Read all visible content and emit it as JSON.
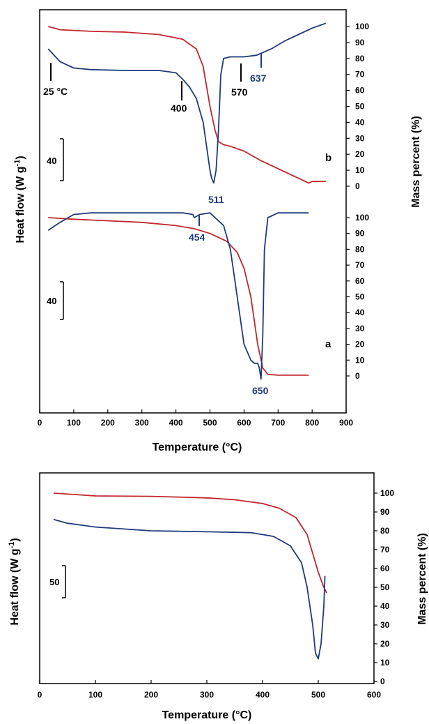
{
  "colors": {
    "dsc": "#1f3a7a",
    "tga": "#c0262c",
    "axis": "#000000"
  },
  "top_panel": {
    "xlabel": "Temperature (°C)",
    "ylabel_left": "Heat flow (W g⁻¹)",
    "ylabel_right": "Mass percent (%)",
    "xticks": [
      "0",
      "100",
      "200",
      "300",
      "400",
      "500",
      "600",
      "700",
      "800",
      "900"
    ],
    "yticks_b": [
      "100",
      "90",
      "80",
      "70",
      "60",
      "50",
      "40",
      "30",
      "20",
      "10",
      "0"
    ],
    "yticks_a": [
      "100",
      "90",
      "80",
      "70",
      "60",
      "50",
      "40",
      "30",
      "20",
      "10",
      "0"
    ],
    "label_a": "a",
    "label_b": "b",
    "scale_b": "40",
    "scale_a": "40",
    "annotations": {
      "t25": "25 °C",
      "t400": "400",
      "t511": "511",
      "t570": "570",
      "t637": "637",
      "t454": "454",
      "t650": "650"
    }
  },
  "bottom_panel": {
    "xlabel": "Temperature (°C)",
    "ylabel_left": "Heat flow (W g⁻¹)",
    "ylabel_right": "Mass percent (%)",
    "xticks": [
      "0",
      "100",
      "200",
      "300",
      "400",
      "500",
      "600"
    ],
    "yticks": [
      "100",
      "90",
      "80",
      "70",
      "60",
      "50",
      "40",
      "30",
      "20",
      "10",
      "0"
    ],
    "scale": "50"
  },
  "chart_data": [
    {
      "type": "line",
      "panel": "top",
      "curve": "b",
      "xlabel": "Temperature (°C)",
      "xlim": [
        0,
        900
      ],
      "mass_ylim": [
        0,
        100
      ],
      "series": [
        {
          "kind": "tga",
          "x": [
            25,
            60,
            150,
            250,
            350,
            420,
            460,
            480,
            500,
            515,
            525,
            540,
            560,
            600,
            650,
            700,
            750,
            790,
            800,
            820,
            840
          ],
          "y": [
            100,
            98,
            97,
            96.5,
            95,
            92,
            86,
            75,
            50,
            35,
            28,
            26,
            25,
            22,
            16,
            11,
            6,
            2,
            3,
            3,
            3
          ]
        },
        {
          "kind": "dsc",
          "x": [
            25,
            60,
            100,
            150,
            250,
            350,
            400,
            420,
            440,
            460,
            480,
            490,
            500,
            505,
            511,
            518,
            525,
            532,
            540,
            560,
            600,
            637,
            680,
            720,
            760,
            800,
            840
          ],
          "y": [
            86,
            78,
            74,
            73,
            72.5,
            72.5,
            71,
            67,
            62,
            55,
            40,
            25,
            10,
            5,
            2,
            10,
            35,
            70,
            80,
            81,
            81,
            82,
            86,
            91,
            95,
            99,
            102
          ]
        }
      ]
    },
    {
      "type": "line",
      "panel": "top",
      "curve": "a",
      "xlabel": "Temperature (°C)",
      "xlim": [
        0,
        900
      ],
      "mass_ylim": [
        0,
        100
      ],
      "series": [
        {
          "kind": "tga",
          "x": [
            25,
            100,
            200,
            300,
            400,
            454,
            500,
            550,
            580,
            600,
            620,
            640,
            655,
            670,
            700,
            750,
            790
          ],
          "y": [
            100,
            99,
            98,
            97,
            95,
            93,
            90,
            85,
            78,
            68,
            50,
            20,
            5,
            1,
            0.5,
            0.5,
            0.5
          ]
        },
        {
          "kind": "dsc",
          "x": [
            25,
            60,
            100,
            150,
            250,
            350,
            420,
            450,
            454,
            470,
            500,
            540,
            560,
            580,
            600,
            620,
            630,
            640,
            645,
            650,
            655,
            660,
            670,
            700,
            750,
            790
          ],
          "y": [
            92,
            97,
            102,
            103,
            103,
            103,
            103,
            102,
            100,
            102,
            103,
            95,
            80,
            50,
            20,
            10,
            8,
            8,
            5,
            -2,
            25,
            80,
            100,
            103,
            103,
            103
          ]
        }
      ]
    },
    {
      "type": "line",
      "panel": "bottom",
      "xlabel": "Temperature (°C)",
      "xlim": [
        0,
        600
      ],
      "mass_ylim": [
        0,
        100
      ],
      "series": [
        {
          "kind": "tga",
          "x": [
            25,
            100,
            200,
            300,
            350,
            400,
            430,
            460,
            480,
            490,
            500,
            510,
            515
          ],
          "y": [
            100,
            98.5,
            98.3,
            97.5,
            96.5,
            94.5,
            92,
            87,
            78,
            68,
            58,
            50,
            47
          ]
        },
        {
          "kind": "dsc",
          "x": [
            25,
            50,
            100,
            200,
            300,
            380,
            420,
            450,
            470,
            480,
            490,
            495,
            500,
            505,
            510,
            512
          ],
          "y": [
            86,
            84,
            82,
            80,
            79.5,
            79,
            77,
            72,
            63,
            50,
            30,
            15,
            12,
            20,
            40,
            56
          ]
        }
      ]
    }
  ]
}
